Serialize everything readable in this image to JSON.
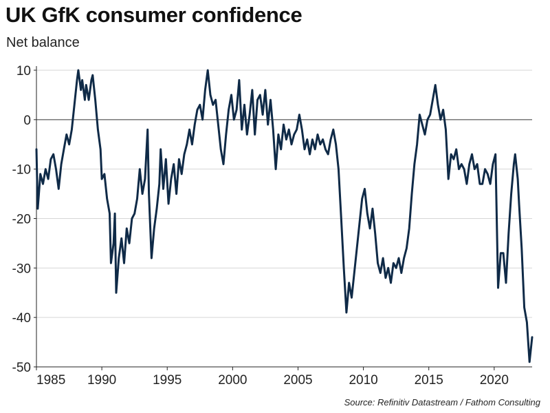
{
  "chart_data": {
    "type": "line",
    "title": "UK GfK consumer confidence",
    "subtitle": "Net balance",
    "xlabel": "",
    "ylabel": "",
    "xlim": [
      1985,
      2022.9
    ],
    "ylim": [
      -50,
      10
    ],
    "xticks": [
      1985,
      1990,
      1995,
      2000,
      2005,
      2010,
      2015,
      2020
    ],
    "yticks": [
      10,
      0,
      -10,
      -20,
      -30,
      -40,
      -50
    ],
    "grid": "horizontal",
    "line_color": "#0f2a47",
    "series": [
      {
        "points": [
          [
            1985.0,
            -6
          ],
          [
            1985.1,
            -18
          ],
          [
            1985.3,
            -11
          ],
          [
            1985.5,
            -13
          ],
          [
            1985.7,
            -10
          ],
          [
            1985.9,
            -12
          ],
          [
            1986.1,
            -8
          ],
          [
            1986.3,
            -7
          ],
          [
            1986.5,
            -10
          ],
          [
            1986.7,
            -14
          ],
          [
            1986.9,
            -9
          ],
          [
            1987.1,
            -6
          ],
          [
            1987.3,
            -3
          ],
          [
            1987.5,
            -5
          ],
          [
            1987.7,
            -2
          ],
          [
            1987.9,
            3
          ],
          [
            1988.1,
            8
          ],
          [
            1988.2,
            10
          ],
          [
            1988.4,
            6
          ],
          [
            1988.5,
            8
          ],
          [
            1988.7,
            4
          ],
          [
            1988.8,
            7
          ],
          [
            1989.0,
            4
          ],
          [
            1989.2,
            8
          ],
          [
            1989.3,
            9
          ],
          [
            1989.5,
            4
          ],
          [
            1989.7,
            -2
          ],
          [
            1989.9,
            -6
          ],
          [
            1990.0,
            -12
          ],
          [
            1990.2,
            -11
          ],
          [
            1990.4,
            -16
          ],
          [
            1990.6,
            -19
          ],
          [
            1990.7,
            -29
          ],
          [
            1990.9,
            -25
          ],
          [
            1991.0,
            -19
          ],
          [
            1991.1,
            -35
          ],
          [
            1991.3,
            -28
          ],
          [
            1991.5,
            -24
          ],
          [
            1991.7,
            -29
          ],
          [
            1991.9,
            -22
          ],
          [
            1992.1,
            -25
          ],
          [
            1992.3,
            -20
          ],
          [
            1992.5,
            -19
          ],
          [
            1992.7,
            -16
          ],
          [
            1992.9,
            -10
          ],
          [
            1993.1,
            -15
          ],
          [
            1993.3,
            -12
          ],
          [
            1993.5,
            -2
          ],
          [
            1993.6,
            -15
          ],
          [
            1993.8,
            -28
          ],
          [
            1994.0,
            -22
          ],
          [
            1994.2,
            -18
          ],
          [
            1994.4,
            -13
          ],
          [
            1994.5,
            -6
          ],
          [
            1994.7,
            -14
          ],
          [
            1994.9,
            -8
          ],
          [
            1995.1,
            -17
          ],
          [
            1995.3,
            -12
          ],
          [
            1995.5,
            -9
          ],
          [
            1995.7,
            -15
          ],
          [
            1995.9,
            -8
          ],
          [
            1996.1,
            -11
          ],
          [
            1996.3,
            -7
          ],
          [
            1996.5,
            -5
          ],
          [
            1996.7,
            -2
          ],
          [
            1996.9,
            -5
          ],
          [
            1997.1,
            -1
          ],
          [
            1997.3,
            2
          ],
          [
            1997.5,
            3
          ],
          [
            1997.7,
            0
          ],
          [
            1997.9,
            6
          ],
          [
            1998.1,
            10
          ],
          [
            1998.3,
            5
          ],
          [
            1998.5,
            3
          ],
          [
            1998.7,
            4
          ],
          [
            1998.9,
            -1
          ],
          [
            1999.1,
            -6
          ],
          [
            1999.3,
            -9
          ],
          [
            1999.5,
            -3
          ],
          [
            1999.7,
            2
          ],
          [
            1999.9,
            5
          ],
          [
            2000.1,
            0
          ],
          [
            2000.3,
            2
          ],
          [
            2000.5,
            8
          ],
          [
            2000.7,
            -2
          ],
          [
            2000.9,
            3
          ],
          [
            2001.1,
            -3
          ],
          [
            2001.3,
            1
          ],
          [
            2001.5,
            6
          ],
          [
            2001.7,
            -3
          ],
          [
            2001.9,
            4
          ],
          [
            2002.1,
            5
          ],
          [
            2002.3,
            1
          ],
          [
            2002.5,
            6
          ],
          [
            2002.7,
            -1
          ],
          [
            2002.9,
            4
          ],
          [
            2003.1,
            -2
          ],
          [
            2003.3,
            -10
          ],
          [
            2003.5,
            -3
          ],
          [
            2003.7,
            -6
          ],
          [
            2003.9,
            -1
          ],
          [
            2004.1,
            -4
          ],
          [
            2004.3,
            -2
          ],
          [
            2004.5,
            -5
          ],
          [
            2004.7,
            -3
          ],
          [
            2004.9,
            -2
          ],
          [
            2005.1,
            1
          ],
          [
            2005.3,
            -2
          ],
          [
            2005.5,
            -6
          ],
          [
            2005.7,
            -4
          ],
          [
            2005.9,
            -7
          ],
          [
            2006.1,
            -4
          ],
          [
            2006.3,
            -6
          ],
          [
            2006.5,
            -3
          ],
          [
            2006.7,
            -5
          ],
          [
            2006.9,
            -4
          ],
          [
            2007.1,
            -6
          ],
          [
            2007.3,
            -7
          ],
          [
            2007.5,
            -4
          ],
          [
            2007.7,
            -2
          ],
          [
            2007.9,
            -5
          ],
          [
            2008.1,
            -10
          ],
          [
            2008.3,
            -20
          ],
          [
            2008.5,
            -30
          ],
          [
            2008.7,
            -39
          ],
          [
            2008.9,
            -33
          ],
          [
            2009.1,
            -36
          ],
          [
            2009.3,
            -31
          ],
          [
            2009.5,
            -26
          ],
          [
            2009.7,
            -21
          ],
          [
            2009.9,
            -16
          ],
          [
            2010.1,
            -14
          ],
          [
            2010.3,
            -19
          ],
          [
            2010.5,
            -22
          ],
          [
            2010.7,
            -18
          ],
          [
            2010.9,
            -23
          ],
          [
            2011.1,
            -29
          ],
          [
            2011.3,
            -31
          ],
          [
            2011.5,
            -28
          ],
          [
            2011.7,
            -32
          ],
          [
            2011.9,
            -30
          ],
          [
            2012.1,
            -33
          ],
          [
            2012.3,
            -29
          ],
          [
            2012.5,
            -30
          ],
          [
            2012.7,
            -28
          ],
          [
            2012.9,
            -31
          ],
          [
            2013.1,
            -28
          ],
          [
            2013.3,
            -26
          ],
          [
            2013.5,
            -22
          ],
          [
            2013.7,
            -15
          ],
          [
            2013.9,
            -9
          ],
          [
            2014.1,
            -5
          ],
          [
            2014.3,
            1
          ],
          [
            2014.5,
            -1
          ],
          [
            2014.7,
            -3
          ],
          [
            2014.9,
            0
          ],
          [
            2015.1,
            1
          ],
          [
            2015.3,
            4
          ],
          [
            2015.5,
            7
          ],
          [
            2015.7,
            3
          ],
          [
            2015.9,
            0
          ],
          [
            2016.1,
            2
          ],
          [
            2016.3,
            -2
          ],
          [
            2016.5,
            -12
          ],
          [
            2016.7,
            -7
          ],
          [
            2016.9,
            -8
          ],
          [
            2017.1,
            -6
          ],
          [
            2017.3,
            -10
          ],
          [
            2017.5,
            -9
          ],
          [
            2017.7,
            -10
          ],
          [
            2017.9,
            -13
          ],
          [
            2018.1,
            -9
          ],
          [
            2018.3,
            -7
          ],
          [
            2018.5,
            -10
          ],
          [
            2018.7,
            -9
          ],
          [
            2018.9,
            -13
          ],
          [
            2019.1,
            -13
          ],
          [
            2019.3,
            -10
          ],
          [
            2019.5,
            -11
          ],
          [
            2019.7,
            -13
          ],
          [
            2019.9,
            -9
          ],
          [
            2020.1,
            -7
          ],
          [
            2020.3,
            -34
          ],
          [
            2020.5,
            -27
          ],
          [
            2020.7,
            -27
          ],
          [
            2020.9,
            -33
          ],
          [
            2021.1,
            -23
          ],
          [
            2021.3,
            -15
          ],
          [
            2021.5,
            -9
          ],
          [
            2021.6,
            -7
          ],
          [
            2021.8,
            -12
          ],
          [
            2021.9,
            -17
          ],
          [
            2022.1,
            -26
          ],
          [
            2022.3,
            -38
          ],
          [
            2022.5,
            -41
          ],
          [
            2022.7,
            -49
          ],
          [
            2022.9,
            -44
          ]
        ]
      }
    ],
    "source": "Source: Refinitiv Datastream / Fathom Consulting"
  }
}
